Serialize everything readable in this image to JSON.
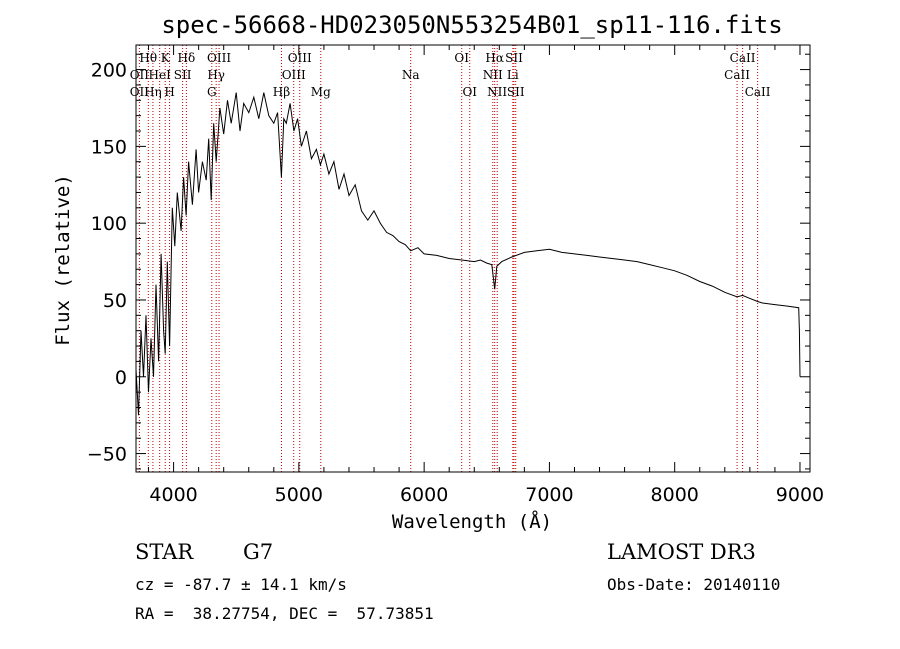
{
  "chart_data": {
    "type": "line",
    "title": "spec-56668-HD023050N553254B01_sp11-116.fits",
    "xlabel": "Wavelength (Å)",
    "ylabel": "Flux (relative)",
    "xlim": [
      3700,
      9080
    ],
    "ylim": [
      -62,
      216
    ],
    "xticks": [
      4000,
      5000,
      6000,
      7000,
      8000,
      9000
    ],
    "yticks": [
      -50,
      0,
      50,
      100,
      150,
      200
    ],
    "series": [
      {
        "name": "flux",
        "x": [
          3700,
          3720,
          3740,
          3760,
          3780,
          3800,
          3820,
          3840,
          3860,
          3880,
          3900,
          3920,
          3933,
          3950,
          3968,
          3990,
          4010,
          4030,
          4060,
          4080,
          4100,
          4120,
          4150,
          4180,
          4200,
          4230,
          4260,
          4280,
          4300,
          4320,
          4340,
          4370,
          4400,
          4430,
          4460,
          4500,
          4530,
          4560,
          4600,
          4640,
          4680,
          4720,
          4760,
          4800,
          4830,
          4861,
          4880,
          4900,
          4930,
          4960,
          4990,
          5020,
          5060,
          5100,
          5140,
          5172,
          5200,
          5240,
          5280,
          5320,
          5360,
          5400,
          5450,
          5500,
          5550,
          5600,
          5650,
          5700,
          5750,
          5800,
          5850,
          5893,
          5950,
          6000,
          6100,
          6200,
          6300,
          6400,
          6450,
          6500,
          6540,
          6563,
          6580,
          6620,
          6700,
          6800,
          6900,
          7000,
          7100,
          7200,
          7300,
          7400,
          7500,
          7600,
          7700,
          7800,
          7900,
          8000,
          8100,
          8200,
          8300,
          8400,
          8498,
          8542,
          8600,
          8662,
          8700,
          8800,
          8900,
          8990,
          8995,
          9000
        ],
        "values": [
          5,
          -25,
          30,
          0,
          40,
          -10,
          25,
          0,
          60,
          10,
          80,
          30,
          15,
          75,
          20,
          110,
          85,
          120,
          95,
          130,
          105,
          140,
          112,
          148,
          120,
          140,
          128,
          155,
          115,
          165,
          140,
          175,
          158,
          180,
          165,
          185,
          160,
          178,
          172,
          182,
          168,
          185,
          170,
          165,
          172,
          130,
          168,
          165,
          178,
          160,
          168,
          150,
          160,
          142,
          148,
          138,
          145,
          132,
          140,
          122,
          132,
          118,
          125,
          108,
          102,
          108,
          100,
          94,
          92,
          88,
          86,
          82,
          84,
          80,
          79,
          77,
          76,
          75,
          76,
          74,
          73,
          57,
          72,
          75,
          78,
          81,
          82,
          83,
          81,
          80,
          79,
          78,
          77,
          76,
          75,
          73,
          71,
          69,
          66,
          62,
          59,
          55,
          52,
          53,
          51,
          49,
          48,
          47,
          46,
          45,
          30,
          0
        ]
      }
    ],
    "lines": [
      {
        "label": "Hθ",
        "x": 3798,
        "row": 1
      },
      {
        "label": "OII",
        "x": 3727,
        "row": 2
      },
      {
        "label": "Hη",
        "x": 3835,
        "row": 3
      },
      {
        "label": "OII",
        "x": 3727,
        "row": 3
      },
      {
        "label": "K",
        "x": 3933,
        "row": 1
      },
      {
        "label": "HeI",
        "x": 3889,
        "row": 2
      },
      {
        "label": "H",
        "x": 3968,
        "row": 3
      },
      {
        "label": "SII",
        "x": 4072,
        "row": 2
      },
      {
        "label": "Hδ",
        "x": 4102,
        "row": 1
      },
      {
        "label": "OIII",
        "x": 4363,
        "row": 1
      },
      {
        "label": "Hγ",
        "x": 4340,
        "row": 2
      },
      {
        "label": "G",
        "x": 4305,
        "row": 3
      },
      {
        "label": "Hβ",
        "x": 4861,
        "row": 3
      },
      {
        "label": "OIII",
        "x": 5007,
        "row": 1
      },
      {
        "label": "OIII",
        "x": 4959,
        "row": 2
      },
      {
        "label": "Mg",
        "x": 5175,
        "row": 3
      },
      {
        "label": "Na",
        "x": 5893,
        "row": 2
      },
      {
        "label": "OI",
        "x": 6300,
        "row": 1
      },
      {
        "label": "OI",
        "x": 6364,
        "row": 3
      },
      {
        "label": "Hα",
        "x": 6563,
        "row": 1
      },
      {
        "label": "NII",
        "x": 6548,
        "row": 2
      },
      {
        "label": "NII",
        "x": 6583,
        "row": 3
      },
      {
        "label": "SII",
        "x": 6717,
        "row": 1
      },
      {
        "label": "Li",
        "x": 6708,
        "row": 2
      },
      {
        "label": "SII",
        "x": 6731,
        "row": 3
      },
      {
        "label": "CaII",
        "x": 8542,
        "row": 1
      },
      {
        "label": "CaII",
        "x": 8498,
        "row": 2
      },
      {
        "label": "CaII",
        "x": 8662,
        "row": 3
      }
    ]
  },
  "footer": {
    "class_label": "STAR",
    "subclass": "G7",
    "cz": "cz = -87.7 ± 14.1 km/s",
    "radec": "RA =  38.27754, DEC =  57.73851",
    "survey": "LAMOST DR3",
    "obs_date": "Obs-Date: 20140110"
  }
}
